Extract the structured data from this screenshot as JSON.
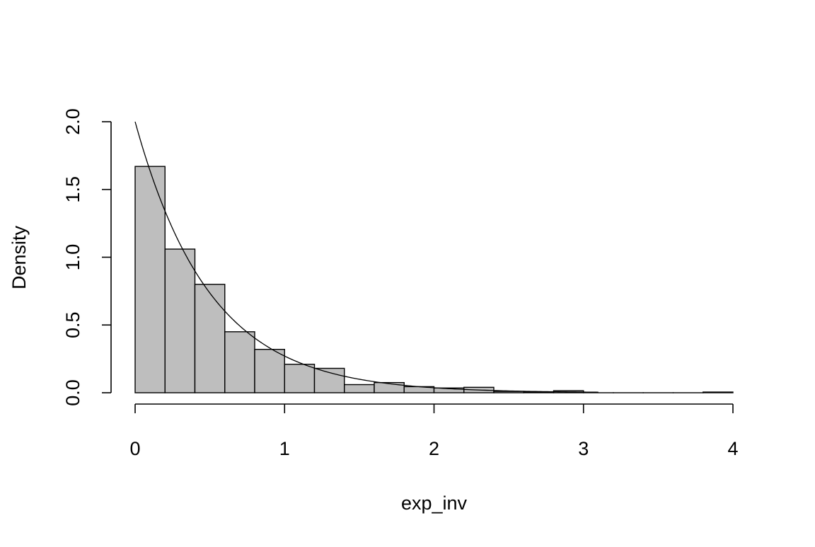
{
  "chart_data": {
    "type": "bar",
    "subtype": "histogram",
    "title": "",
    "xlabel": "exp_inv",
    "ylabel": "Density",
    "xlim": [
      0,
      4
    ],
    "ylim": [
      0,
      2
    ],
    "x_ticks": [
      0,
      1,
      2,
      3,
      4
    ],
    "y_ticks": [
      0.0,
      0.5,
      1.0,
      1.5,
      2.0
    ],
    "x_tick_labels": [
      "0",
      "1",
      "2",
      "3",
      "4"
    ],
    "y_tick_labels": [
      "0.0",
      "0.5",
      "1.0",
      "1.5",
      "2.0"
    ],
    "bin_width": 0.2,
    "bins": [
      {
        "x0": 0.0,
        "x1": 0.2,
        "density": 1.67
      },
      {
        "x0": 0.2,
        "x1": 0.4,
        "density": 1.06
      },
      {
        "x0": 0.4,
        "x1": 0.6,
        "density": 0.8
      },
      {
        "x0": 0.6,
        "x1": 0.8,
        "density": 0.45
      },
      {
        "x0": 0.8,
        "x1": 1.0,
        "density": 0.32
      },
      {
        "x0": 1.0,
        "x1": 1.2,
        "density": 0.21
      },
      {
        "x0": 1.2,
        "x1": 1.4,
        "density": 0.18
      },
      {
        "x0": 1.4,
        "x1": 1.6,
        "density": 0.06
      },
      {
        "x0": 1.6,
        "x1": 1.8,
        "density": 0.075
      },
      {
        "x0": 1.8,
        "x1": 2.0,
        "density": 0.045
      },
      {
        "x0": 2.0,
        "x1": 2.2,
        "density": 0.035
      },
      {
        "x0": 2.2,
        "x1": 2.4,
        "density": 0.04
      },
      {
        "x0": 2.4,
        "x1": 2.6,
        "density": 0.01
      },
      {
        "x0": 2.6,
        "x1": 2.8,
        "density": 0.005
      },
      {
        "x0": 2.8,
        "x1": 3.0,
        "density": 0.015
      },
      {
        "x0": 3.0,
        "x1": 3.2,
        "density": 0.0
      },
      {
        "x0": 3.2,
        "x1": 3.4,
        "density": 0.0
      },
      {
        "x0": 3.4,
        "x1": 3.6,
        "density": 0.0
      },
      {
        "x0": 3.6,
        "x1": 3.8,
        "density": 0.0
      },
      {
        "x0": 3.8,
        "x1": 4.0,
        "density": 0.005
      }
    ],
    "overlay_curve": {
      "type": "line",
      "function": "exponential density",
      "rate": 2,
      "x_range": [
        0,
        3.1
      ]
    },
    "colors": {
      "bar_fill": "#bebebe",
      "bar_stroke": "#000000",
      "axis": "#000000",
      "curve": "#000000"
    },
    "grid": false,
    "legend": "none"
  }
}
